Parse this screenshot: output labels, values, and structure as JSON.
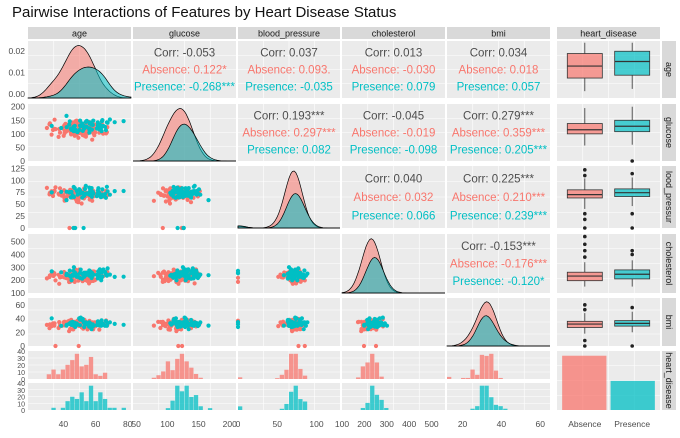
{
  "title": "Pairwise Interactions of Features by Heart Disease Status",
  "colors": {
    "absence": "#F8766D",
    "presence": "#00BFC4",
    "panel_bg": "#EBEBEB",
    "strip_bg": "#D9D9D9",
    "gridline": "#FFFFFF",
    "text": "#4D4D4D",
    "corr_text": "#4D4D4D"
  },
  "chart_data": {
    "type": "pairs",
    "variables": [
      "age",
      "glucose",
      "blood_pressure",
      "cholesterol",
      "bmi",
      "heart_disease"
    ],
    "row_strip_labels": [
      "age",
      "glucose",
      "lood_pressur",
      "cholesterol",
      "bmi",
      "heart_disease"
    ],
    "groups": [
      "Absence",
      "Presence"
    ],
    "upper_correlations": [
      {
        "row": "age",
        "col": "glucose",
        "corr": "Corr: -0.053",
        "absence": "Absence: 0.122*",
        "presence": "Presence: -0.268***"
      },
      {
        "row": "age",
        "col": "blood_pressure",
        "corr": "Corr: 0.037",
        "absence": "Absence: 0.093.",
        "presence": "Presence: -0.035"
      },
      {
        "row": "age",
        "col": "cholesterol",
        "corr": "Corr: 0.013",
        "absence": "Absence: -0.030",
        "presence": "Presence: 0.079"
      },
      {
        "row": "age",
        "col": "bmi",
        "corr": "Corr: 0.034",
        "absence": "Absence: 0.018",
        "presence": "Presence: 0.057"
      },
      {
        "row": "glucose",
        "col": "blood_pressure",
        "corr": "Corr: 0.193***",
        "absence": "Absence: 0.297***",
        "presence": "Presence: 0.082"
      },
      {
        "row": "glucose",
        "col": "cholesterol",
        "corr": "Corr: -0.045",
        "absence": "Absence: -0.019",
        "presence": "Presence: -0.098"
      },
      {
        "row": "glucose",
        "col": "bmi",
        "corr": "Corr: 0.279***",
        "absence": "Absence: 0.359***",
        "presence": "Presence: 0.205***"
      },
      {
        "row": "blood_pressure",
        "col": "cholesterol",
        "corr": "Corr: 0.040",
        "absence": "Absence: 0.032",
        "presence": "Presence: 0.066"
      },
      {
        "row": "blood_pressure",
        "col": "bmi",
        "corr": "Corr: 0.225***",
        "absence": "Absence: 0.210***",
        "presence": "Presence: 0.239***"
      },
      {
        "row": "cholesterol",
        "col": "bmi",
        "corr": "Corr: -0.153***",
        "absence": "Absence: -0.176***",
        "presence": "Presence: -0.120*"
      }
    ],
    "axes": {
      "age": {
        "range": [
          18,
          82
        ],
        "ticks": [
          40,
          60,
          80
        ],
        "row_ticks": [
          0.02,
          0.01,
          0.0
        ]
      },
      "glucose": {
        "range": [
          45,
          210
        ],
        "ticks": [
          0,
          50,
          100,
          150,
          200
        ],
        "row_range": [
          0,
          210
        ],
        "row_ticks": [
          200,
          150,
          100,
          50,
          0
        ]
      },
      "blood_pressure": {
        "range": [
          0,
          130
        ],
        "ticks": [
          0,
          50,
          100,
          150,
          200
        ],
        "row_range": [
          0,
          130
        ],
        "row_ticks": [
          125,
          100,
          75,
          50,
          25,
          0
        ]
      },
      "cholesterol": {
        "range": [
          100,
          560
        ],
        "ticks": [
          100,
          200,
          300,
          400,
          500
        ],
        "row_range": [
          100,
          560
        ],
        "row_ticks": [
          500,
          400,
          300,
          200,
          100
        ]
      },
      "bmi": {
        "range": [
          12,
          65
        ],
        "ticks": [
          0,
          20,
          40,
          60
        ],
        "row_range": [
          0,
          70
        ],
        "row_ticks": [
          60,
          40,
          20,
          0
        ]
      }
    },
    "heart_disease_counts": {
      "Absence": 500,
      "Presence": 268
    },
    "heart_disease_row_ticks": [
      40,
      30,
      20,
      10,
      0
    ],
    "boxplots": {
      "age": {
        "Absence": {
          "q1": 0.35,
          "med": 0.56,
          "q3": 0.78,
          "lo": 0.12,
          "hi": 0.97,
          "out": []
        },
        "Presence": {
          "q1": 0.4,
          "med": 0.64,
          "q3": 0.82,
          "lo": 0.16,
          "hi": 0.97,
          "out": []
        }
      },
      "glucose": {
        "Absence": {
          "q1": 100,
          "med": 115,
          "q3": 138,
          "lo": 57,
          "hi": 195,
          "out": []
        },
        "Presence": {
          "q1": 108,
          "med": 128,
          "q3": 150,
          "lo": 60,
          "hi": 200,
          "out": [
            0
          ]
        }
      },
      "blood_pressure": {
        "Absence": {
          "q1": 63,
          "med": 70,
          "q3": 80,
          "lo": 40,
          "hi": 104,
          "out": [
            110,
            122,
            30,
            18,
            0
          ]
        },
        "Presence": {
          "q1": 66,
          "med": 74,
          "q3": 82,
          "lo": 46,
          "hi": 106,
          "out": [
            114,
            30,
            0
          ]
        }
      },
      "cholesterol": {
        "Absence": {
          "q1": 196,
          "med": 232,
          "q3": 262,
          "lo": 150,
          "hi": 340,
          "out": [
            380,
            430,
            480,
            540
          ]
        },
        "Presence": {
          "q1": 210,
          "med": 246,
          "q3": 280,
          "lo": 150,
          "hi": 355,
          "out": [
            400,
            430
          ]
        }
      },
      "bmi": {
        "Absence": {
          "q1": 27,
          "med": 32,
          "q3": 36,
          "lo": 18,
          "hi": 48,
          "out": [
            53,
            60,
            8,
            0
          ]
        },
        "Presence": {
          "q1": 29,
          "med": 33,
          "q3": 37,
          "lo": 20,
          "hi": 50,
          "out": [
            56,
            0
          ]
        }
      }
    },
    "boxplot_x_labels": [
      "Absence",
      "Presence"
    ],
    "legend": "none",
    "grid": true
  }
}
